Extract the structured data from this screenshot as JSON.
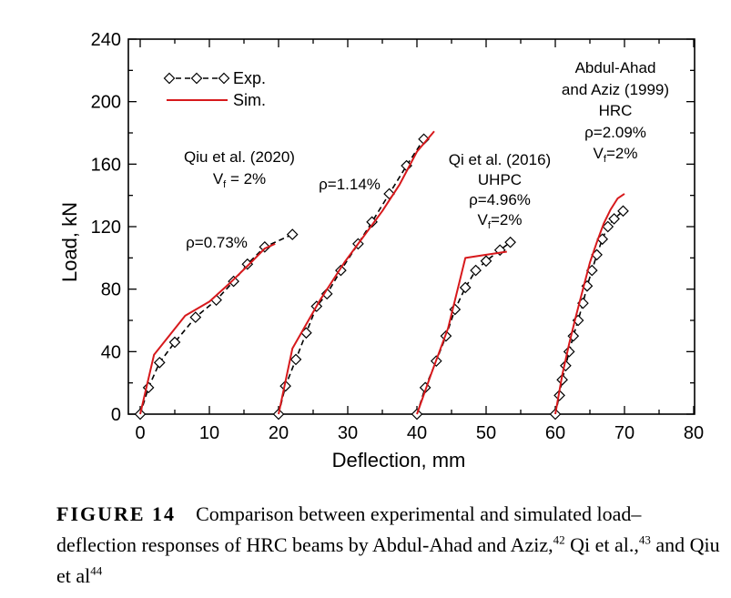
{
  "chart_data": {
    "type": "line",
    "xlabel": "Deflection, mm",
    "ylabel": "Load, kN",
    "xlim": [
      0,
      80
    ],
    "ylim": [
      0,
      240
    ],
    "xticks": [
      0,
      10,
      20,
      30,
      40,
      50,
      60,
      70,
      80
    ],
    "yticks": [
      0,
      40,
      80,
      120,
      160,
      200,
      240
    ],
    "grid": false,
    "legend": {
      "placement": "top-left",
      "entries": [
        {
          "label": "Exp.",
          "style": "dashed-diamond",
          "color": "#000000"
        },
        {
          "label": "Sim.",
          "style": "solid",
          "color": "#d7191c"
        }
      ]
    },
    "annotations": {
      "qiu2020_line1": "Qiu et al. (2020)",
      "qiu2020_vf_main": "V",
      "qiu2020_vf_sub": "f",
      "qiu2020_vf_rest": " = 2%",
      "rho073": "ρ=0.73%",
      "rho114": "ρ=1.14%",
      "qi2016_line1": "Qi et al. (2016)",
      "qi2016_line2": "UHPC",
      "qi2016_rho": "ρ=4.96%",
      "qi2016_vf_main": "V",
      "qi2016_vf_sub": "f",
      "qi2016_vf_rest": "=2%",
      "abdul_line1": "Abdul-Ahad",
      "abdul_line2": "and Aziz (1999)",
      "abdul_line3": "HRC",
      "abdul_rho": "ρ=2.09%",
      "abdul_vf_main": "V",
      "abdul_vf_sub": "f",
      "abdul_vf_rest": "=2%"
    },
    "series": [
      {
        "group": "ρ=0.73%",
        "kind": "Exp.",
        "points": [
          [
            0,
            0
          ],
          [
            1.2,
            17
          ],
          [
            2.8,
            33
          ],
          [
            5,
            46
          ],
          [
            8,
            62
          ],
          [
            11,
            73
          ],
          [
            13.5,
            85
          ],
          [
            15.5,
            96
          ],
          [
            18,
            107
          ],
          [
            22,
            115
          ]
        ]
      },
      {
        "group": "ρ=0.73%",
        "kind": "Sim.",
        "points": [
          [
            0,
            0
          ],
          [
            2,
            38
          ],
          [
            6.5,
            63
          ],
          [
            10,
            72
          ],
          [
            13,
            84
          ],
          [
            16,
            97
          ],
          [
            18,
            106
          ],
          [
            19.5,
            109
          ]
        ]
      },
      {
        "group": "ρ=1.14%",
        "kind": "Exp.",
        "points": [
          [
            20,
            0
          ],
          [
            21,
            18
          ],
          [
            22.5,
            35
          ],
          [
            24,
            52
          ],
          [
            25.5,
            69
          ],
          [
            27,
            77
          ],
          [
            29,
            92
          ],
          [
            31.5,
            109
          ],
          [
            33.5,
            123
          ],
          [
            36,
            141
          ],
          [
            38.5,
            159
          ],
          [
            41,
            176
          ]
        ]
      },
      {
        "group": "ρ=1.14%",
        "kind": "Sim.",
        "points": [
          [
            20,
            0
          ],
          [
            22,
            42
          ],
          [
            26,
            73
          ],
          [
            29.5,
            97
          ],
          [
            32,
            112
          ],
          [
            35,
            130
          ],
          [
            37.5,
            147
          ],
          [
            40,
            168
          ],
          [
            42.5,
            181
          ]
        ]
      },
      {
        "group": "ρ=4.96%",
        "kind": "Exp.",
        "points": [
          [
            40,
            0
          ],
          [
            41.2,
            17
          ],
          [
            42.8,
            34
          ],
          [
            44.2,
            50
          ],
          [
            45.5,
            67
          ],
          [
            47,
            81
          ],
          [
            48.5,
            92
          ],
          [
            50,
            98
          ],
          [
            52,
            105
          ],
          [
            53.5,
            110
          ]
        ]
      },
      {
        "group": "ρ=4.96%",
        "kind": "Sim.",
        "points": [
          [
            40,
            0
          ],
          [
            42,
            25
          ],
          [
            44.5,
            55
          ],
          [
            47,
            100
          ],
          [
            50,
            102
          ],
          [
            53,
            104
          ]
        ]
      },
      {
        "group": "ρ=2.09%",
        "kind": "Exp.",
        "points": [
          [
            60,
            0
          ],
          [
            60.6,
            12
          ],
          [
            61,
            22
          ],
          [
            61.5,
            31
          ],
          [
            62,
            40
          ],
          [
            62.6,
            50
          ],
          [
            63.3,
            60
          ],
          [
            64,
            71
          ],
          [
            64.6,
            82
          ],
          [
            65.3,
            92
          ],
          [
            66,
            102
          ],
          [
            66.8,
            112
          ],
          [
            67.6,
            120
          ],
          [
            68.5,
            125
          ],
          [
            69.8,
            130
          ]
        ]
      },
      {
        "group": "ρ=2.09%",
        "kind": "Sim.",
        "points": [
          [
            60,
            0
          ],
          [
            61,
            25
          ],
          [
            62,
            45
          ],
          [
            63,
            63
          ],
          [
            64,
            80
          ],
          [
            65,
            97
          ],
          [
            66,
            110
          ],
          [
            67,
            122
          ],
          [
            68,
            131
          ],
          [
            69,
            138
          ],
          [
            70,
            141
          ]
        ]
      }
    ]
  },
  "caption": {
    "label": "FIGURE 14",
    "text_a": "Comparison between experimental and simulated load–deflection responses of HRC beams by Abdul-Ahad and Aziz,",
    "ref_a": "42",
    "text_b": " Qi et al.,",
    "ref_b": "43",
    "text_c": " and Qiu et al",
    "ref_c": "44"
  }
}
